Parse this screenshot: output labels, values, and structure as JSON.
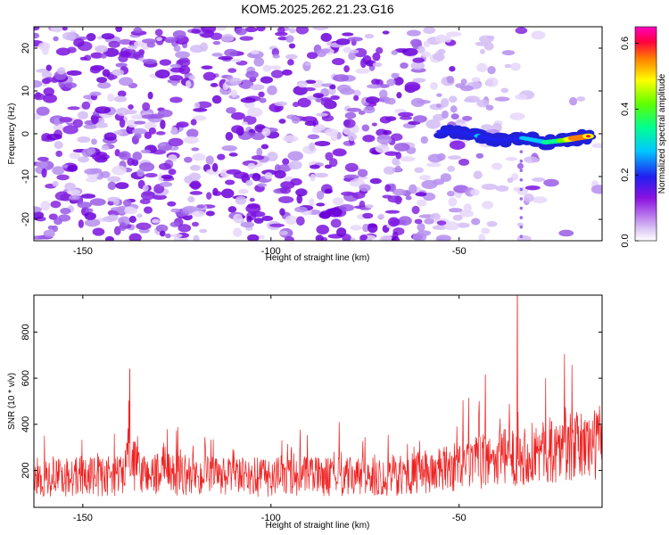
{
  "title": "KOM5.2025.262.21.23.G16",
  "chart_data": [
    {
      "type": "heatmap",
      "name": "spectrogram",
      "xlabel": "Height of straight line (km)",
      "ylabel": "Frequency (Hz)",
      "xlim": [
        -163,
        -12
      ],
      "ylim": [
        -25,
        25
      ],
      "xticks": [
        -150,
        -100,
        -50
      ],
      "yticks": [
        -20,
        -10,
        0,
        10,
        20
      ],
      "colorbar": {
        "label": "Normalized spectral amplitude",
        "range": [
          0,
          0.65
        ],
        "ticks": [
          "0.0",
          "0.2",
          "0.4",
          "0.6"
        ],
        "tick_values": [
          0.0,
          0.2,
          0.4,
          0.6
        ],
        "colors": [
          "#ffffff",
          "#c8a8f0",
          "#8000e0",
          "#2020f0",
          "#00c0ff",
          "#00ff80",
          "#80ff00",
          "#ffff00",
          "#ff8000",
          "#ff0040",
          "#ff00c0"
        ]
      },
      "signal_track": {
        "description_points": [
          {
            "x": -55,
            "y": 0.5,
            "amp": 0.2
          },
          {
            "x": -50,
            "y": 0.5,
            "amp": 0.15
          },
          {
            "x": -45,
            "y": -0.5,
            "amp": 0.25
          },
          {
            "x": -40,
            "y": -1.5,
            "amp": 0.2
          },
          {
            "x": -33,
            "y": -1.0,
            "amp": 0.25
          },
          {
            "x": -27,
            "y": -2.0,
            "amp": 0.35
          },
          {
            "x": -22,
            "y": -1.5,
            "amp": 0.45
          },
          {
            "x": -19,
            "y": -1.0,
            "amp": 0.6
          },
          {
            "x": -15,
            "y": -0.5,
            "amp": 0.55
          }
        ]
      }
    },
    {
      "type": "line",
      "name": "snr",
      "xlabel": "Height of straight line (km)",
      "ylabel": "SNR (10 * v/v)",
      "xlim": [
        -163,
        -12
      ],
      "ylim": [
        40,
        960
      ],
      "xticks": [
        -150,
        -100,
        -50
      ],
      "yticks": [
        200,
        400,
        600,
        800
      ],
      "series_color": "#ee2222",
      "envelope": [
        {
          "x": -163,
          "mean": 170
        },
        {
          "x": -140,
          "mean": 175
        },
        {
          "x": -138,
          "mean": 260
        },
        {
          "x": -135,
          "mean": 190
        },
        {
          "x": -110,
          "mean": 170
        },
        {
          "x": -90,
          "mean": 175
        },
        {
          "x": -70,
          "mean": 170
        },
        {
          "x": -55,
          "mean": 200
        },
        {
          "x": -40,
          "mean": 250
        },
        {
          "x": -25,
          "mean": 290
        },
        {
          "x": -12,
          "mean": 320
        }
      ],
      "peaks": [
        {
          "x": -137.5,
          "y": 640
        },
        {
          "x": -34.5,
          "y": 960
        },
        {
          "x": -43,
          "y": 615
        },
        {
          "x": -22,
          "y": 705
        },
        {
          "x": -27,
          "y": 600
        }
      ]
    }
  ]
}
